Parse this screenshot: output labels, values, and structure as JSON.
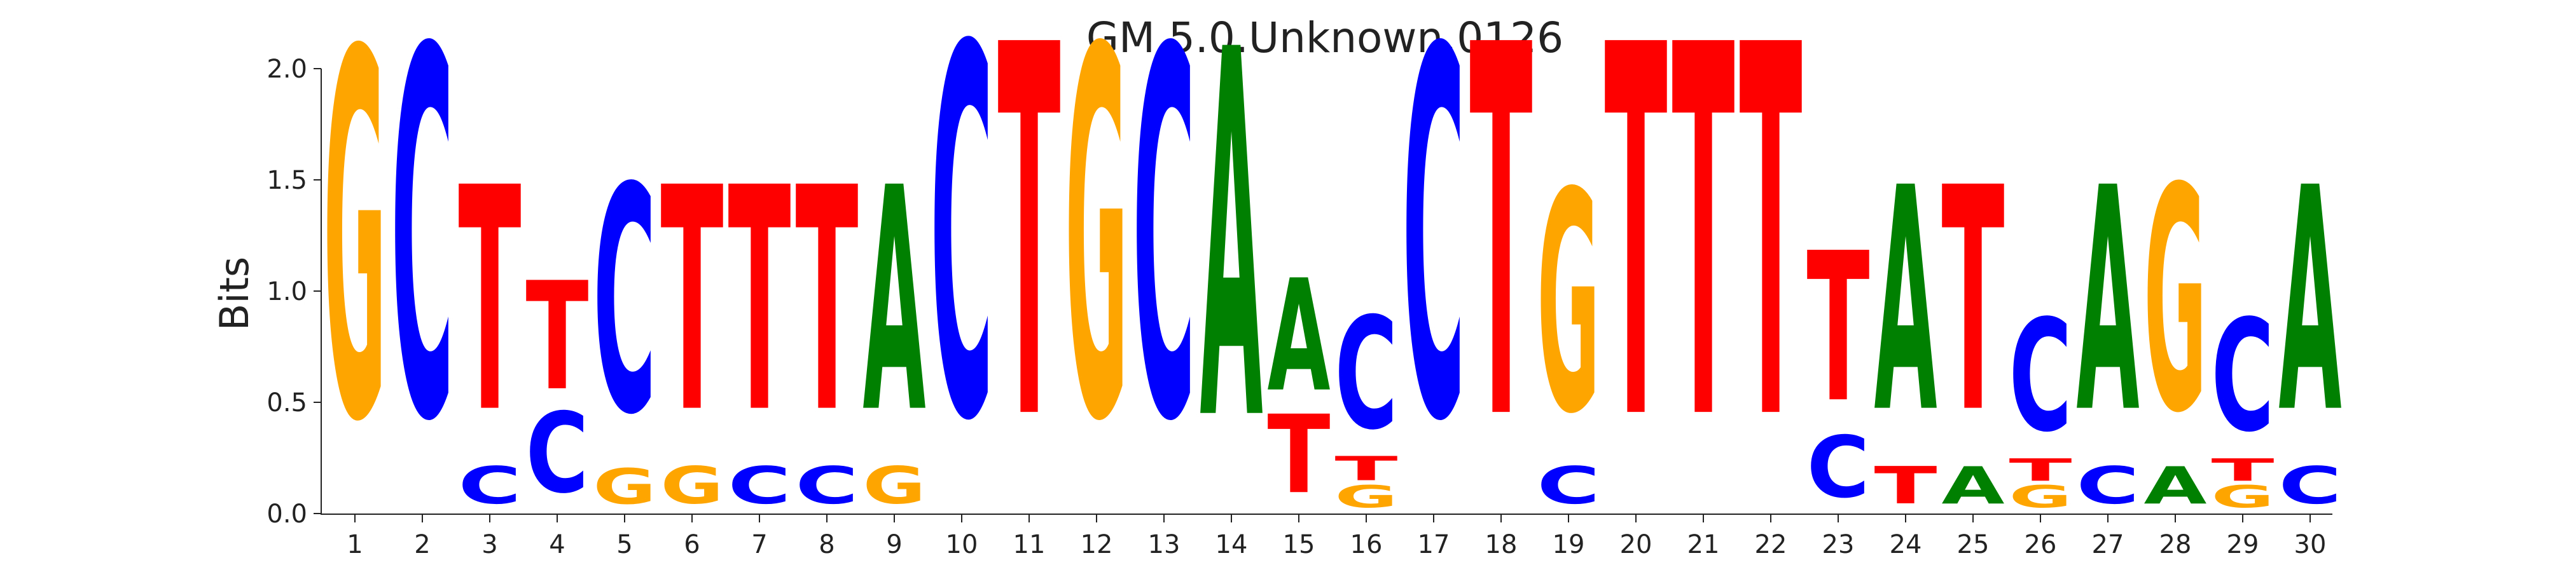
{
  "chart_data": {
    "type": "sequence-logo",
    "title": "GM.5.0.Unknown.0126",
    "ylabel": "Bits",
    "xlabel": "",
    "ylim": [
      0,
      2.0
    ],
    "yticks": [
      "0.0",
      "0.5",
      "1.0",
      "1.5",
      "2.0"
    ],
    "colors": {
      "A": "#008000",
      "C": "#0000ff",
      "G": "#ffa500",
      "T": "#ff0000"
    },
    "positions": [
      {
        "pos": "1",
        "letters": [
          {
            "base": "G",
            "bits": 1.96
          }
        ]
      },
      {
        "pos": "2",
        "letters": [
          {
            "base": "C",
            "bits": 1.97
          }
        ]
      },
      {
        "pos": "3",
        "letters": [
          {
            "base": "C",
            "bits": 0.2
          },
          {
            "base": "T",
            "bits": 1.2
          }
        ]
      },
      {
        "pos": "4",
        "letters": [
          {
            "base": "C",
            "bits": 0.43
          },
          {
            "base": "T",
            "bits": 0.58
          }
        ]
      },
      {
        "pos": "5",
        "letters": [
          {
            "base": "G",
            "bits": 0.19
          },
          {
            "base": "C",
            "bits": 1.21
          }
        ]
      },
      {
        "pos": "6",
        "letters": [
          {
            "base": "G",
            "bits": 0.2
          },
          {
            "base": "T",
            "bits": 1.2
          }
        ]
      },
      {
        "pos": "7",
        "letters": [
          {
            "base": "C",
            "bits": 0.2
          },
          {
            "base": "T",
            "bits": 1.2
          }
        ]
      },
      {
        "pos": "8",
        "letters": [
          {
            "base": "C",
            "bits": 0.2
          },
          {
            "base": "T",
            "bits": 1.2
          }
        ]
      },
      {
        "pos": "9",
        "letters": [
          {
            "base": "G",
            "bits": 0.2
          },
          {
            "base": "A",
            "bits": 1.2
          }
        ]
      },
      {
        "pos": "10",
        "letters": [
          {
            "base": "C",
            "bits": 1.98
          }
        ]
      },
      {
        "pos": "11",
        "letters": [
          {
            "base": "T",
            "bits": 1.99
          }
        ]
      },
      {
        "pos": "12",
        "letters": [
          {
            "base": "G",
            "bits": 1.97
          }
        ]
      },
      {
        "pos": "13",
        "letters": [
          {
            "base": "C",
            "bits": 1.97
          }
        ]
      },
      {
        "pos": "14",
        "letters": [
          {
            "base": "A",
            "bits": 1.97
          }
        ]
      },
      {
        "pos": "15",
        "letters": [
          {
            "base": "T",
            "bits": 0.42
          },
          {
            "base": "A",
            "bits": 0.6
          }
        ]
      },
      {
        "pos": "16",
        "letters": [
          {
            "base": "G",
            "bits": 0.12
          },
          {
            "base": "T",
            "bits": 0.13
          },
          {
            "base": "C",
            "bits": 0.6
          }
        ]
      },
      {
        "pos": "17",
        "letters": [
          {
            "base": "C",
            "bits": 1.97
          }
        ]
      },
      {
        "pos": "18",
        "letters": [
          {
            "base": "T",
            "bits": 1.99
          }
        ]
      },
      {
        "pos": "19",
        "letters": [
          {
            "base": "C",
            "bits": 0.2
          },
          {
            "base": "G",
            "bits": 1.18
          }
        ]
      },
      {
        "pos": "20",
        "letters": [
          {
            "base": "T",
            "bits": 1.99
          }
        ]
      },
      {
        "pos": "21",
        "letters": [
          {
            "base": "T",
            "bits": 1.99
          }
        ]
      },
      {
        "pos": "22",
        "letters": [
          {
            "base": "T",
            "bits": 1.99
          }
        ]
      },
      {
        "pos": "23",
        "letters": [
          {
            "base": "C",
            "bits": 0.33
          },
          {
            "base": "T",
            "bits": 0.8
          }
        ]
      },
      {
        "pos": "24",
        "letters": [
          {
            "base": "T",
            "bits": 0.2
          },
          {
            "base": "A",
            "bits": 1.2
          }
        ]
      },
      {
        "pos": "25",
        "letters": [
          {
            "base": "A",
            "bits": 0.2
          },
          {
            "base": "T",
            "bits": 1.2
          }
        ]
      },
      {
        "pos": "26",
        "letters": [
          {
            "base": "G",
            "bits": 0.12
          },
          {
            "base": "T",
            "bits": 0.12
          },
          {
            "base": "C",
            "bits": 0.6
          }
        ]
      },
      {
        "pos": "27",
        "letters": [
          {
            "base": "C",
            "bits": 0.2
          },
          {
            "base": "A",
            "bits": 1.2
          }
        ]
      },
      {
        "pos": "28",
        "letters": [
          {
            "base": "A",
            "bits": 0.2
          },
          {
            "base": "G",
            "bits": 1.2
          }
        ]
      },
      {
        "pos": "29",
        "letters": [
          {
            "base": "G",
            "bits": 0.12
          },
          {
            "base": "T",
            "bits": 0.12
          },
          {
            "base": "C",
            "bits": 0.6
          }
        ]
      },
      {
        "pos": "30",
        "letters": [
          {
            "base": "C",
            "bits": 0.2
          },
          {
            "base": "A",
            "bits": 1.2
          }
        ]
      }
    ]
  }
}
